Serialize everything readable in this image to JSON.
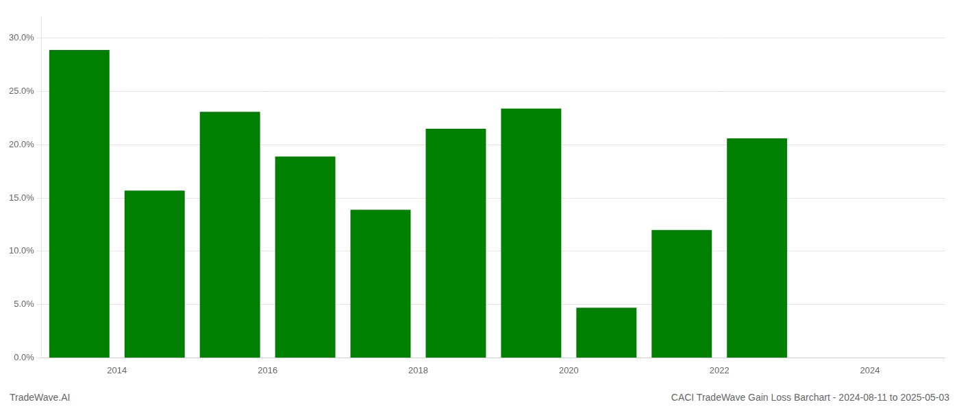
{
  "chart_data": {
    "type": "bar",
    "annotations": [
      "TradeWave.AI",
      "CACI TradeWave Gain Loss Barchart - 2024-08-11 to 2025-05-03"
    ],
    "x": [
      2013.5,
      2014.5,
      2015.5,
      2016.5,
      2017.5,
      2018.5,
      2019.5,
      2020.5,
      2021.5,
      2022.5
    ],
    "values": [
      0.289,
      0.157,
      0.231,
      0.189,
      0.139,
      0.215,
      0.234,
      0.047,
      0.12,
      0.206
    ],
    "color": "#008000",
    "xlim": [
      2013.0,
      2025.0
    ],
    "xticks": [
      2014,
      2016,
      2018,
      2020,
      2022,
      2024
    ],
    "ylim": [
      0,
      0.32
    ],
    "yticks": [
      {
        "value": 0.0,
        "label": "0.0%"
      },
      {
        "value": 0.05,
        "label": "5.0%"
      },
      {
        "value": 0.1,
        "label": "10.0%"
      },
      {
        "value": 0.15,
        "label": "15.0%"
      },
      {
        "value": 0.2,
        "label": "20.0%"
      },
      {
        "value": 0.25,
        "label": "25.0%"
      },
      {
        "value": 0.3,
        "label": "30.0%"
      }
    ],
    "grid": true
  }
}
